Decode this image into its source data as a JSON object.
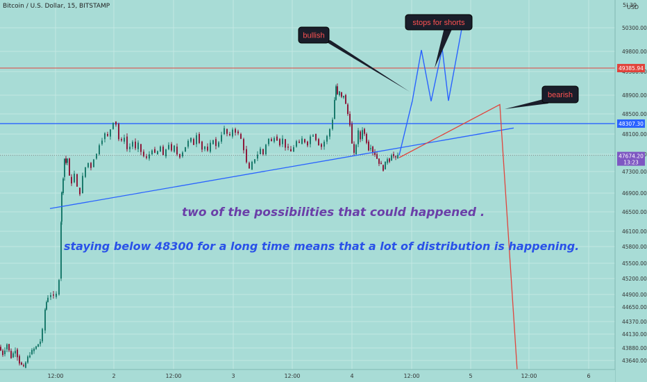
{
  "header": {
    "symbol_title": "Bitcoin / U.S. Dollar, 15, BITSTAMP",
    "currency": "USD",
    "corner_mark": "5l 30"
  },
  "annotations": {
    "bullish": "bullish",
    "stops_for_shorts": "stops for shorts",
    "bearish": "bearish",
    "note_possibilities": "two of the possibilities that could happened .",
    "note_distribution": "staying below 48300 for a long time means that a lot of distribution is happening."
  },
  "price_tags": {
    "red_level": "49385.94",
    "blue_level": "48307.30",
    "last_price": "47674.20",
    "countdown": "13:23"
  },
  "colors": {
    "background": "#a8dcd6",
    "candle_up": "#1a7a6c",
    "candle_down": "#8c1a3a",
    "red_line": "#e0443c",
    "blue_line": "#2962ff",
    "callout_bg": "#1a1e2a",
    "note_purple": "#6a3fa8",
    "note_blue": "#2a52e8",
    "last_price_tag": "#7e57c2"
  },
  "chart_data": {
    "type": "candlestick",
    "title": "Bitcoin / U.S. Dollar, 15, BITSTAMP",
    "ylabel": "USD",
    "ylim": [
      43450,
      50600
    ],
    "y_ticks": [
      "50300.00",
      "49800.00",
      "49300.00",
      "48900.00",
      "48500.00",
      "48100.00",
      "47700.00",
      "47300.00",
      "46900.00",
      "46500.00",
      "46100.00",
      "45800.00",
      "45500.00",
      "45200.00",
      "44900.00",
      "44650.00",
      "44370.00",
      "44130.00",
      "43880.00",
      "43640.00"
    ],
    "x_ticks": [
      "12:00",
      "2",
      "12:00",
      "3",
      "12:00",
      "4",
      "12:00",
      "5",
      "12:00",
      "6"
    ],
    "horizontal_lines": [
      {
        "price": 49385.94,
        "color": "#e0443c"
      },
      {
        "price": 48307.3,
        "color": "#2962ff"
      }
    ],
    "last_price": 47674.2,
    "price_path": [
      {
        "t": 0,
        "p": 43900
      },
      {
        "t": 6,
        "p": 43760
      },
      {
        "t": 12,
        "p": 43950
      },
      {
        "t": 18,
        "p": 43700
      },
      {
        "t": 24,
        "p": 43850
      },
      {
        "t": 30,
        "p": 43600
      },
      {
        "t": 36,
        "p": 43500
      },
      {
        "t": 42,
        "p": 43700
      },
      {
        "t": 48,
        "p": 43820
      },
      {
        "t": 54,
        "p": 43900
      },
      {
        "t": 60,
        "p": 44000
      },
      {
        "t": 64,
        "p": 44200
      },
      {
        "t": 66,
        "p": 44600
      },
      {
        "t": 68,
        "p": 44750
      },
      {
        "t": 72,
        "p": 44850
      },
      {
        "t": 76,
        "p": 44900
      },
      {
        "t": 80,
        "p": 44850
      },
      {
        "t": 84,
        "p": 44900
      },
      {
        "t": 87,
        "p": 45200
      },
      {
        "t": 88,
        "p": 46300
      },
      {
        "t": 90,
        "p": 46900
      },
      {
        "t": 92,
        "p": 47200
      },
      {
        "t": 94,
        "p": 47600
      },
      {
        "t": 96,
        "p": 47500
      },
      {
        "t": 99,
        "p": 47600
      },
      {
        "t": 102,
        "p": 47200
      },
      {
        "t": 106,
        "p": 47100
      },
      {
        "t": 110,
        "p": 47250
      },
      {
        "t": 114,
        "p": 47000
      },
      {
        "t": 118,
        "p": 46900
      },
      {
        "t": 122,
        "p": 47200
      },
      {
        "t": 126,
        "p": 47400
      },
      {
        "t": 130,
        "p": 47500
      },
      {
        "t": 134,
        "p": 47400
      },
      {
        "t": 138,
        "p": 47600
      },
      {
        "t": 142,
        "p": 47700
      },
      {
        "t": 146,
        "p": 47900
      },
      {
        "t": 150,
        "p": 48000
      },
      {
        "t": 154,
        "p": 48100
      },
      {
        "t": 158,
        "p": 48050
      },
      {
        "t": 162,
        "p": 48200
      },
      {
        "t": 166,
        "p": 48350
      },
      {
        "t": 170,
        "p": 48300
      },
      {
        "t": 174,
        "p": 48000
      },
      {
        "t": 178,
        "p": 47950
      },
      {
        "t": 182,
        "p": 48050
      },
      {
        "t": 186,
        "p": 47800
      },
      {
        "t": 190,
        "p": 47850
      },
      {
        "t": 194,
        "p": 47950
      },
      {
        "t": 198,
        "p": 47800
      },
      {
        "t": 202,
        "p": 47900
      },
      {
        "t": 206,
        "p": 47750
      },
      {
        "t": 210,
        "p": 47650
      },
      {
        "t": 214,
        "p": 47600
      },
      {
        "t": 218,
        "p": 47700
      },
      {
        "t": 222,
        "p": 47800
      },
      {
        "t": 226,
        "p": 47700
      },
      {
        "t": 230,
        "p": 47750
      },
      {
        "t": 234,
        "p": 47850
      },
      {
        "t": 238,
        "p": 47650
      },
      {
        "t": 242,
        "p": 47800
      },
      {
        "t": 246,
        "p": 47900
      },
      {
        "t": 250,
        "p": 47750
      },
      {
        "t": 254,
        "p": 47850
      },
      {
        "t": 258,
        "p": 47700
      },
      {
        "t": 262,
        "p": 47650
      },
      {
        "t": 266,
        "p": 47750
      },
      {
        "t": 270,
        "p": 47850
      },
      {
        "t": 274,
        "p": 47950
      },
      {
        "t": 278,
        "p": 48000
      },
      {
        "t": 282,
        "p": 47900
      },
      {
        "t": 286,
        "p": 48100
      },
      {
        "t": 290,
        "p": 47950
      },
      {
        "t": 294,
        "p": 47800
      },
      {
        "t": 298,
        "p": 47850
      },
      {
        "t": 302,
        "p": 47750
      },
      {
        "t": 306,
        "p": 47900
      },
      {
        "t": 310,
        "p": 48000
      },
      {
        "t": 314,
        "p": 47850
      },
      {
        "t": 318,
        "p": 47950
      },
      {
        "t": 322,
        "p": 48100
      },
      {
        "t": 326,
        "p": 48200
      },
      {
        "t": 330,
        "p": 48100
      },
      {
        "t": 334,
        "p": 48050
      },
      {
        "t": 338,
        "p": 48200
      },
      {
        "t": 342,
        "p": 48150
      },
      {
        "t": 346,
        "p": 48100
      },
      {
        "t": 350,
        "p": 48000
      },
      {
        "t": 354,
        "p": 47800
      },
      {
        "t": 358,
        "p": 47500
      },
      {
        "t": 362,
        "p": 47350
      },
      {
        "t": 366,
        "p": 47500
      },
      {
        "t": 370,
        "p": 47600
      },
      {
        "t": 374,
        "p": 47700
      },
      {
        "t": 378,
        "p": 47800
      },
      {
        "t": 382,
        "p": 47700
      },
      {
        "t": 386,
        "p": 47900
      },
      {
        "t": 390,
        "p": 48000
      },
      {
        "t": 394,
        "p": 47950
      },
      {
        "t": 398,
        "p": 48050
      },
      {
        "t": 402,
        "p": 48000
      },
      {
        "t": 406,
        "p": 47900
      },
      {
        "t": 410,
        "p": 48000
      },
      {
        "t": 414,
        "p": 47850
      },
      {
        "t": 418,
        "p": 47800
      },
      {
        "t": 422,
        "p": 47750
      },
      {
        "t": 426,
        "p": 47850
      },
      {
        "t": 430,
        "p": 47950
      },
      {
        "t": 434,
        "p": 47900
      },
      {
        "t": 438,
        "p": 48000
      },
      {
        "t": 442,
        "p": 47950
      },
      {
        "t": 446,
        "p": 47900
      },
      {
        "t": 450,
        "p": 48050
      },
      {
        "t": 454,
        "p": 48100
      },
      {
        "t": 458,
        "p": 48000
      },
      {
        "t": 462,
        "p": 47900
      },
      {
        "t": 466,
        "p": 47850
      },
      {
        "t": 470,
        "p": 47950
      },
      {
        "t": 474,
        "p": 48050
      },
      {
        "t": 478,
        "p": 48200
      },
      {
        "t": 481,
        "p": 48400
      },
      {
        "t": 483,
        "p": 48800
      },
      {
        "t": 485,
        "p": 49050
      },
      {
        "t": 488,
        "p": 48900
      },
      {
        "t": 491,
        "p": 48950
      },
      {
        "t": 494,
        "p": 48850
      },
      {
        "t": 497,
        "p": 48900
      },
      {
        "t": 500,
        "p": 48700
      },
      {
        "t": 503,
        "p": 48500
      },
      {
        "t": 506,
        "p": 48300
      },
      {
        "t": 509,
        "p": 47900
      },
      {
        "t": 512,
        "p": 47700
      },
      {
        "t": 515,
        "p": 47900
      },
      {
        "t": 518,
        "p": 48150
      },
      {
        "t": 521,
        "p": 48000
      },
      {
        "t": 524,
        "p": 48200
      },
      {
        "t": 527,
        "p": 48100
      },
      {
        "t": 530,
        "p": 47950
      },
      {
        "t": 533,
        "p": 47800
      },
      {
        "t": 536,
        "p": 47850
      },
      {
        "t": 539,
        "p": 47750
      },
      {
        "t": 542,
        "p": 47700
      },
      {
        "t": 545,
        "p": 47600
      },
      {
        "t": 548,
        "p": 47500
      },
      {
        "t": 551,
        "p": 47450
      },
      {
        "t": 554,
        "p": 47350
      },
      {
        "t": 557,
        "p": 47500
      },
      {
        "t": 560,
        "p": 47600
      },
      {
        "t": 563,
        "p": 47550
      },
      {
        "t": 566,
        "p": 47700
      },
      {
        "t": 569,
        "p": 47650
      },
      {
        "t": 572,
        "p": 47600
      },
      {
        "t": 575,
        "p": 47674
      }
    ],
    "drawings": {
      "support_trendline": [
        {
          "t": 72,
          "p": 46570
        },
        {
          "t": 740,
          "p": 48220
        }
      ],
      "bullish_path": [
        {
          "t": 575,
          "p": 47674
        },
        {
          "t": 594,
          "p": 48780
        },
        {
          "t": 607,
          "p": 49830
        },
        {
          "t": 621,
          "p": 48770
        },
        {
          "t": 637,
          "p": 49860
        },
        {
          "t": 646,
          "p": 48780
        },
        {
          "t": 667,
          "p": 50430
        }
      ],
      "bearish_path": [
        {
          "t": 575,
          "p": 47620
        },
        {
          "t": 720,
          "p": 48700
        },
        {
          "t": 745,
          "p": 43450
        }
      ]
    }
  }
}
